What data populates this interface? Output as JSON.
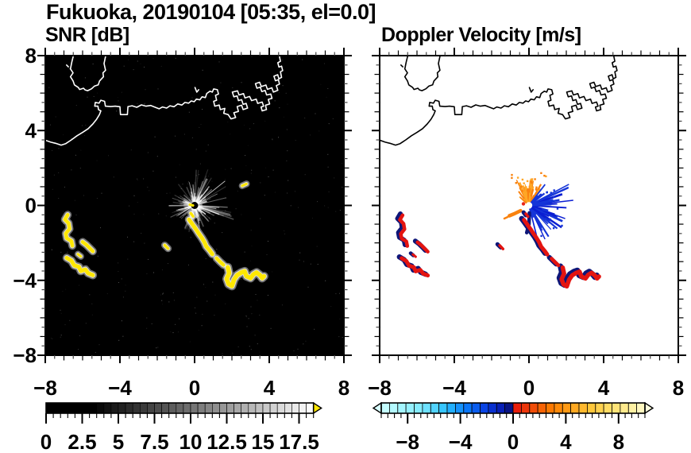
{
  "title": "Fukuoka, 20190104 [05:35, el=0.0]",
  "chart_data": {
    "type": "heatmap",
    "title": "Fukuoka, 20190104 [05:35, el=0.0]",
    "xlim": [
      -8,
      8
    ],
    "ylim": [
      -8,
      8
    ],
    "xticks": {
      "values": [
        -8,
        -4,
        0,
        4,
        8
      ],
      "labels": [
        "−8",
        "−4",
        "0",
        "4",
        "8"
      ]
    },
    "yticks": {
      "values": [
        8,
        4,
        0,
        -4,
        -8
      ],
      "labels": [
        "8",
        "4",
        "0",
        "−4",
        "−8"
      ]
    },
    "minor_tick_step": 0.5,
    "panels": [
      {
        "id": "snr",
        "title": "SNR [dB]",
        "background": "#000000",
        "coast_color": "#ffffff",
        "colorbar": {
          "type": "grayscale",
          "range": [
            0,
            18.5
          ],
          "tick_values": [
            0,
            2.5,
            5,
            7.5,
            10,
            12.5,
            15,
            17.5
          ],
          "labels": [
            "0",
            "2.5",
            "5",
            "7.5",
            "10",
            "12.5",
            "15",
            "17.5"
          ],
          "low_color": "#000000",
          "high_color": "#ffffff",
          "overflow_color": "#ffe800"
        },
        "content": "Black PPI with gray ground-clutter spokes around the radar at the origin and strong sea/ship echoes (yellow, above scale max) in two arc clusters southwest and southeast of the radar."
      },
      {
        "id": "doppler",
        "title": "Doppler Velocity [m/s]",
        "background": "#ffffff",
        "coast_color": "#000000",
        "colorbar": {
          "type": "diverging",
          "range": [
            -10,
            10
          ],
          "tick_values": [
            -8,
            -4,
            0,
            4,
            8
          ],
          "labels": [
            "−8",
            "−4",
            "0",
            "4",
            "8"
          ],
          "stops_negative": [
            [
              -10,
              "#ccffff"
            ],
            [
              -7,
              "#80ebff"
            ],
            [
              -5,
              "#28beff"
            ],
            [
              -3.5,
              "#0a78fa"
            ],
            [
              -2,
              "#0a3ce1"
            ],
            [
              -0.9,
              "#081eb4"
            ],
            [
              -0.05,
              "#080e6e"
            ]
          ],
          "stops_positive": [
            [
              0.05,
              "#e6140c"
            ],
            [
              1.5,
              "#f04b08"
            ],
            [
              3,
              "#ff7f00"
            ],
            [
              4.5,
              "#ffa51e"
            ],
            [
              6,
              "#ffc83c"
            ],
            [
              7.5,
              "#ffe16e"
            ],
            [
              9,
              "#fff0a0"
            ],
            [
              10,
              "#fffacd"
            ]
          ],
          "underflow_color": "#d8ffff",
          "overflow_color": "#ffffdf"
        },
        "content": "White PPI with positive (orange) velocities in a fan north-west of the radar, negative (blue) velocities east/south-east, and echo arcs drawn red with navy fringes."
      }
    ],
    "radar_center": [
      0,
      0
    ],
    "coastline": {
      "island": [
        [
          -6.47,
          8.1
        ],
        [
          -6.58,
          7.65
        ],
        [
          -6.65,
          7.29
        ],
        [
          -6.51,
          7.08
        ],
        [
          -6.65,
          6.87
        ],
        [
          -6.51,
          6.65
        ],
        [
          -6.44,
          6.44
        ],
        [
          -6.23,
          6.3
        ],
        [
          -6.16,
          6.19
        ],
        [
          -5.95,
          6.26
        ],
        [
          -5.87,
          6.17
        ],
        [
          -5.73,
          6.13
        ],
        [
          -5.52,
          6.23
        ],
        [
          -5.37,
          6.37
        ],
        [
          -5.16,
          6.44
        ],
        [
          -5.09,
          6.65
        ],
        [
          -4.88,
          6.87
        ],
        [
          -4.91,
          7.08
        ],
        [
          -4.77,
          7.22
        ],
        [
          -4.85,
          7.58
        ],
        [
          -4.74,
          8.1
        ]
      ],
      "islet": [
        [
          -6.86,
          7.5
        ],
        [
          -6.76,
          7.4
        ]
      ],
      "notch": [
        [
          0.02,
          6.3
        ],
        [
          0.12,
          6.05
        ],
        [
          0.22,
          6.18
        ]
      ],
      "mainland": [
        [
          -8.1,
          3.52
        ],
        [
          -7.7,
          3.38
        ],
        [
          -7.45,
          3.32
        ],
        [
          -7.15,
          3.22
        ],
        [
          -6.9,
          3.3
        ],
        [
          -6.6,
          3.5
        ],
        [
          -6.3,
          3.72
        ],
        [
          -6,
          3.9
        ],
        [
          -5.7,
          4.1
        ],
        [
          -5.45,
          4.35
        ],
        [
          -5.25,
          4.6
        ],
        [
          -5.1,
          4.85
        ],
        [
          -5.02,
          5.05
        ],
        [
          -5.15,
          5.12
        ],
        [
          -5.18,
          5.3
        ],
        [
          -5.35,
          5.3
        ],
        [
          -5.32,
          5.5
        ],
        [
          -5.12,
          5.46
        ],
        [
          -5.02,
          5.62
        ],
        [
          -4.82,
          5.56
        ],
        [
          -4.78,
          5.3
        ],
        [
          -4.5,
          5.28
        ],
        [
          -4.25,
          5.3
        ],
        [
          -4,
          5.27
        ],
        [
          -3.97,
          4.85
        ],
        [
          -3.6,
          4.85
        ],
        [
          -3.57,
          5.28
        ],
        [
          -3.35,
          5.32
        ],
        [
          -3.1,
          5.24
        ],
        [
          -2.85,
          5.37
        ],
        [
          -2.6,
          5.3
        ],
        [
          -2.35,
          5.34
        ],
        [
          -2.15,
          5.26
        ],
        [
          -1.9,
          5.16
        ],
        [
          -1.72,
          5.26
        ],
        [
          -1.5,
          5.2
        ],
        [
          -1.32,
          5.32
        ],
        [
          -1.1,
          5.27
        ],
        [
          -0.9,
          5.42
        ],
        [
          -0.68,
          5.36
        ],
        [
          -0.52,
          5.5
        ],
        [
          -0.32,
          5.46
        ],
        [
          -0.18,
          5.58
        ],
        [
          -0.02,
          5.54
        ],
        [
          0.1,
          5.68
        ],
        [
          0.28,
          5.64
        ],
        [
          0.4,
          5.8
        ],
        [
          0.58,
          5.76
        ],
        [
          0.65,
          5.98
        ],
        [
          0.82,
          6.1
        ],
        [
          0.95,
          6.05
        ],
        [
          1.02,
          6.22
        ],
        [
          1.22,
          6.18
        ],
        [
          1.28,
          5.95
        ],
        [
          1.12,
          5.88
        ],
        [
          1.18,
          5.62
        ],
        [
          1.02,
          5.56
        ],
        [
          1.08,
          5.3
        ],
        [
          1.32,
          5.36
        ],
        [
          1.38,
          5.12
        ],
        [
          1.62,
          5.18
        ],
        [
          1.56,
          4.92
        ],
        [
          1.8,
          4.85
        ],
        [
          1.95,
          4.62
        ],
        [
          2.2,
          4.7
        ],
        [
          2.1,
          4.95
        ],
        [
          2.35,
          5.02
        ],
        [
          2.28,
          5.28
        ],
        [
          2.52,
          5.35
        ],
        [
          2.6,
          5.12
        ],
        [
          2.84,
          5.2
        ],
        [
          2.76,
          5.45
        ],
        [
          2.6,
          5.4
        ],
        [
          2.52,
          5.65
        ],
        [
          2.35,
          5.6
        ],
        [
          2.28,
          5.85
        ],
        [
          2.1,
          5.8
        ],
        [
          2.02,
          6.05
        ],
        [
          2.3,
          6.12
        ],
        [
          2.38,
          5.9
        ],
        [
          2.62,
          5.97
        ],
        [
          2.7,
          5.74
        ],
        [
          2.95,
          5.82
        ],
        [
          3.05,
          5.6
        ],
        [
          3.3,
          5.68
        ],
        [
          3.38,
          5.45
        ],
        [
          3.62,
          5.52
        ],
        [
          3.7,
          5.3
        ],
        [
          3.56,
          5.26
        ],
        [
          3.62,
          5.05
        ],
        [
          3.85,
          5.12
        ],
        [
          3.8,
          5.35
        ],
        [
          4.02,
          5.42
        ],
        [
          3.95,
          5.66
        ],
        [
          4.15,
          5.72
        ],
        [
          4.08,
          5.95
        ],
        [
          3.86,
          5.9
        ],
        [
          3.78,
          6.14
        ],
        [
          3.6,
          6.08
        ],
        [
          3.52,
          6.32
        ],
        [
          3.34,
          6.26
        ],
        [
          3.26,
          6.5
        ],
        [
          3.48,
          6.58
        ],
        [
          3.58,
          6.35
        ],
        [
          3.82,
          6.43
        ],
        [
          3.9,
          6.2
        ],
        [
          4.14,
          6.28
        ],
        [
          4.22,
          6.05
        ],
        [
          4.46,
          6.15
        ],
        [
          4.38,
          6.4
        ],
        [
          4.55,
          6.48
        ],
        [
          4.49,
          6.72
        ],
        [
          4.33,
          6.66
        ],
        [
          4.25,
          6.9
        ],
        [
          4.45,
          6.98
        ],
        [
          4.52,
          6.76
        ],
        [
          4.66,
          6.84
        ],
        [
          4.6,
          7.14
        ],
        [
          4.72,
          7.2
        ],
        [
          4.66,
          7.44
        ],
        [
          4.52,
          7.39
        ],
        [
          4.46,
          7.62
        ],
        [
          4.6,
          7.7
        ],
        [
          4.55,
          7.95
        ]
      ]
    },
    "echo_arcs": [
      {
        "id": "west-1",
        "w": 4.5,
        "pts": [
          [
            -6.8,
            -0.5
          ],
          [
            -6.95,
            -0.75
          ],
          [
            -6.75,
            -0.95
          ],
          [
            -6.7,
            -1.25
          ],
          [
            -6.9,
            -1.5
          ],
          [
            -6.85,
            -1.75
          ],
          [
            -6.6,
            -1.9
          ],
          [
            -6.55,
            -2.15
          ]
        ]
      },
      {
        "id": "west-2",
        "w": 4.5,
        "pts": [
          [
            -6.0,
            -1.95
          ],
          [
            -5.8,
            -2.1
          ],
          [
            -5.6,
            -2.3
          ],
          [
            -5.45,
            -2.45
          ]
        ]
      },
      {
        "id": "west-3",
        "w": 3,
        "pts": [
          [
            -6.25,
            -2.6
          ],
          [
            -6.1,
            -2.72
          ]
        ]
      },
      {
        "id": "west-4",
        "w": 5,
        "pts": [
          [
            -6.85,
            -2.8
          ],
          [
            -6.6,
            -2.95
          ],
          [
            -6.45,
            -3.2
          ],
          [
            -6.2,
            -3.28
          ],
          [
            -6.1,
            -3.5
          ],
          [
            -5.85,
            -3.42
          ],
          [
            -5.7,
            -3.62
          ],
          [
            -5.45,
            -3.72
          ]
        ]
      },
      {
        "id": "center-streak",
        "w": 5,
        "pts": [
          [
            -0.3,
            -0.75
          ],
          [
            -0.12,
            -1.0
          ],
          [
            0.08,
            -1.28
          ],
          [
            0.22,
            -1.5
          ],
          [
            0.38,
            -1.72
          ],
          [
            0.52,
            -1.95
          ],
          [
            0.62,
            -2.18
          ],
          [
            0.82,
            -2.42
          ],
          [
            0.95,
            -2.6
          ]
        ]
      },
      {
        "id": "center-streak-2",
        "w": 4.5,
        "pts": [
          [
            1.18,
            -2.82
          ],
          [
            1.38,
            -3.02
          ],
          [
            1.55,
            -3.18
          ]
        ]
      },
      {
        "id": "southeast-blob",
        "w": 5.5,
        "pts": [
          [
            1.78,
            -3.3
          ],
          [
            1.85,
            -3.62
          ],
          [
            1.72,
            -3.92
          ],
          [
            1.82,
            -4.2
          ],
          [
            2.0,
            -4.3
          ],
          [
            2.12,
            -3.95
          ],
          [
            2.28,
            -3.72
          ],
          [
            2.5,
            -3.58
          ],
          [
            2.68,
            -3.52
          ],
          [
            2.78,
            -3.78
          ],
          [
            3.0,
            -3.88
          ],
          [
            3.15,
            -3.68
          ],
          [
            3.32,
            -3.58
          ],
          [
            3.5,
            -3.72
          ],
          [
            3.62,
            -3.88
          ],
          [
            3.72,
            -3.78
          ]
        ]
      },
      {
        "id": "small-dash-west",
        "w": 3.5,
        "pts": [
          [
            -1.6,
            -2.12
          ],
          [
            -1.42,
            -2.3
          ]
        ]
      },
      {
        "id": "near-center-dash",
        "w": 3.5,
        "pts": [
          [
            -0.2,
            -0.42
          ],
          [
            -0.08,
            -0.58
          ]
        ]
      },
      {
        "id": "northeast-dash",
        "w": 3,
        "snr_only": true,
        "pts": [
          [
            2.55,
            1.05
          ],
          [
            2.78,
            1.15
          ]
        ]
      }
    ],
    "snr_style": {
      "spoke_color": "#ffffff",
      "echo_color": "#ffe800",
      "halo_color": "#d9d9d9"
    },
    "doppler_style": {
      "away_color": "#f9820f",
      "away_color_2": "#ffa726",
      "toward_color": "#1535d8",
      "toward_color_2": "#0a1ed2",
      "fringe_color": "#0e1678",
      "echo_color": "#e41410",
      "center_red_dot": "#e8251a"
    }
  }
}
